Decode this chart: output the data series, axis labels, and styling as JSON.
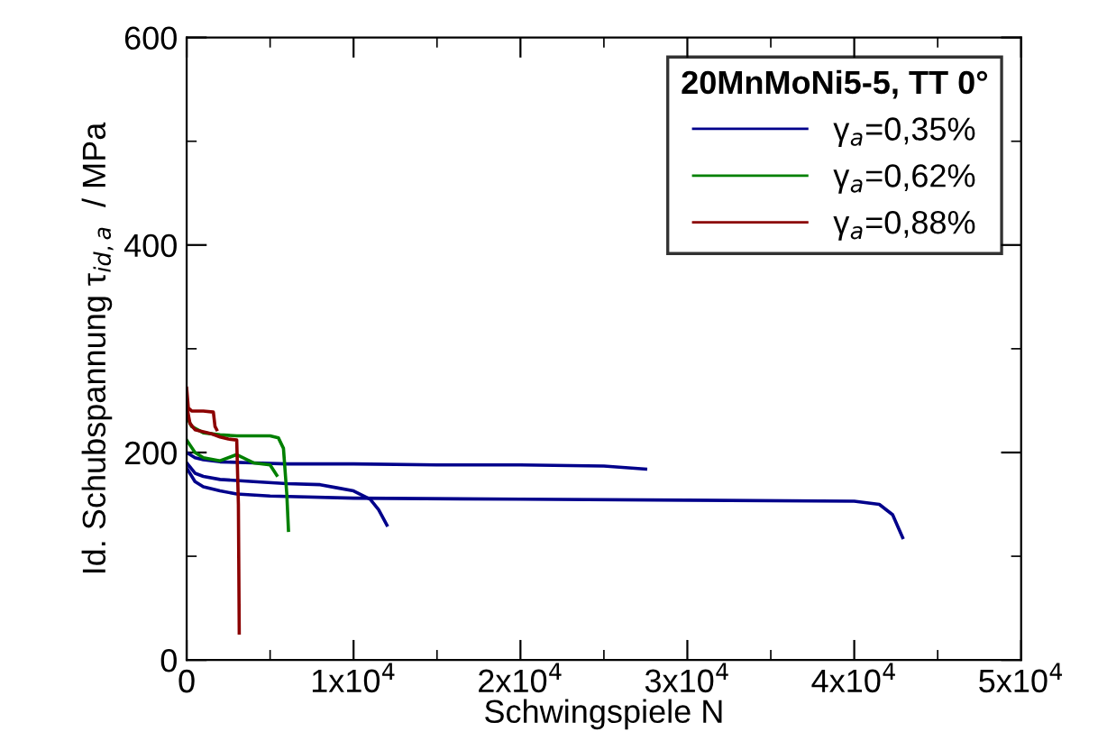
{
  "chart_data": {
    "type": "line",
    "xlabel": "Schwingspiele N",
    "ylabel": "Id. Schubspannung τ$_{id,a}$  / MPa",
    "legend_title": "20MnMoNi5-5, TT 0°",
    "legend": "top right",
    "grid": false,
    "marker": "none",
    "line_style": "solid",
    "xlim": [
      0,
      50000
    ],
    "ylim": [
      0,
      600
    ],
    "xticks": [
      0,
      {
        "value": 10000,
        "label": "1x10$^{4}$"
      },
      {
        "value": 20000,
        "label": "2x10$^{4}$"
      },
      {
        "value": 30000,
        "label": "3x10$^{4}$"
      },
      {
        "value": 40000,
        "label": "4x10$^{4}$"
      },
      {
        "value": 50000,
        "label": "5x10$^{4}$"
      }
    ],
    "yticks": [
      0,
      200,
      400,
      600
    ],
    "series": [
      {
        "name": "γ$_{a}$=0,35%",
        "color": "#00008b",
        "x": [
          0,
          500,
          1000,
          2000,
          4000,
          6000,
          10000,
          15000,
          20000,
          25000,
          27500
        ],
        "values": [
          200,
          195,
          193,
          191,
          190,
          189,
          189,
          188,
          188,
          187,
          184
        ]
      },
      {
        "color": "#00008b",
        "x": [
          0,
          500,
          1000,
          2000,
          4000,
          6000,
          8000,
          9000,
          10000,
          11000,
          11500,
          12000
        ],
        "values": [
          190,
          180,
          177,
          174,
          172,
          170,
          169,
          166,
          163,
          155,
          145,
          130
        ]
      },
      {
        "color": "#00008b",
        "x": [
          0,
          500,
          1000,
          2000,
          3000,
          5000,
          10000,
          20000,
          30000,
          40000,
          41500,
          42300,
          42900
        ],
        "values": [
          185,
          172,
          167,
          163,
          160,
          158,
          156,
          155,
          154,
          153,
          150,
          140,
          118
        ]
      },
      {
        "name": "γ$_{a}$=0,62%",
        "color": "#008000",
        "x": [
          0,
          300,
          1000,
          2000,
          3000,
          4000,
          5000,
          5500,
          5800,
          6000,
          6100
        ],
        "values": [
          235,
          225,
          219,
          217,
          216,
          216,
          216,
          214,
          204,
          160,
          125
        ]
      },
      {
        "color": "#008000",
        "x": [
          0,
          500,
          1000,
          2000,
          3000,
          4000,
          5000,
          5400
        ],
        "values": [
          212,
          200,
          195,
          192,
          198,
          190,
          188,
          178
        ]
      },
      {
        "name": "γ$_{a}$=0,88%",
        "color": "#8b0000",
        "x": [
          0,
          200,
          500,
          1000,
          1500,
          2000,
          2500,
          3000,
          3100,
          3150
        ],
        "values": [
          245,
          228,
          222,
          220,
          218,
          215,
          213,
          212,
          150,
          26
        ]
      },
      {
        "color": "#8b0000",
        "x": [
          0,
          100,
          300,
          1000,
          1600,
          1700,
          1800
        ],
        "values": [
          262,
          243,
          240,
          240,
          239,
          225,
          222
        ]
      }
    ]
  }
}
